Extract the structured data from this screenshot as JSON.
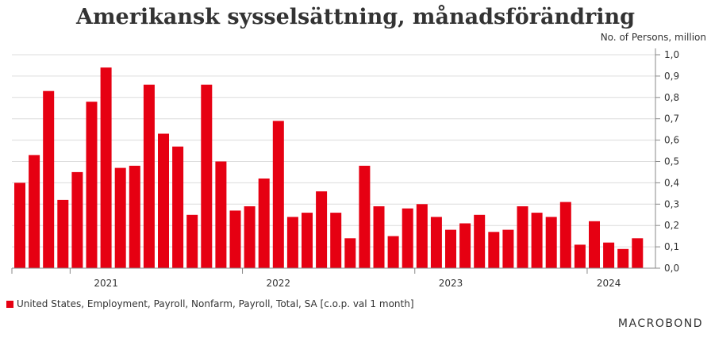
{
  "chart_data": {
    "type": "bar",
    "title": "Amerikansk sysselsättning, månadsförändring",
    "unit_label": "No. of Persons, million",
    "series": [
      {
        "name": "United States, Employment, Payroll, Nonfarm, Payroll, Total, SA [c.o.p. val 1 month]",
        "color": "#e60012",
        "values": [
          0.4,
          0.53,
          0.83,
          0.32,
          0.45,
          0.78,
          0.94,
          0.47,
          0.48,
          0.86,
          0.63,
          0.57,
          0.25,
          0.86,
          0.5,
          0.27,
          0.29,
          0.42,
          0.69,
          0.24,
          0.26,
          0.36,
          0.26,
          0.14,
          0.48,
          0.29,
          0.15,
          0.28,
          0.3,
          0.24,
          0.18,
          0.21,
          0.25,
          0.17,
          0.18,
          0.29,
          0.26,
          0.24,
          0.31,
          0.11,
          0.22,
          0.12,
          0.09,
          0.14
        ]
      }
    ],
    "x_start": "2020-09",
    "x_tick_labels": [
      "2021",
      "2022",
      "2023",
      "2024"
    ],
    "x_tick_label_month_index": [
      6,
      18,
      30,
      41
    ],
    "x_year_boundary_index": [
      4,
      16,
      28,
      40
    ],
    "ylim": [
      0,
      1.0
    ],
    "y_ticks": [
      "0,0",
      "0,1",
      "0,2",
      "0,3",
      "0,4",
      "0,5",
      "0,6",
      "0,7",
      "0,8",
      "0,9",
      "1,0"
    ],
    "grid": true,
    "y_axis_position": "right",
    "legend_position": "bottom-left"
  },
  "footer": {
    "logo": "MACROBOND"
  }
}
